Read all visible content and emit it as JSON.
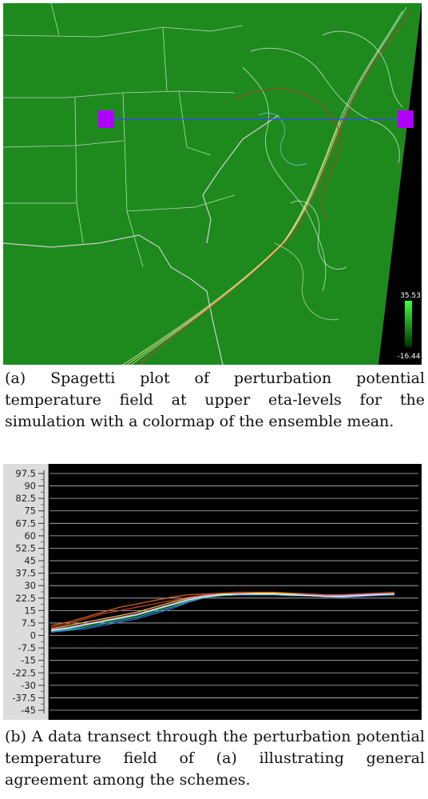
{
  "map": {
    "colorbar_max": "35.53",
    "colorbar_min": "-16.44",
    "background_color": "#1e8a1e",
    "marker_color": "#b000ff",
    "transect_line_color": "#4040ff"
  },
  "caption_a": "(a) Spagetti plot of perturbation potential temperature field at upper eta-levels for the simulation with a colormap of the ensemble mean.",
  "caption_b": "(b) A data transect through the perturbation potential temperature field of (a) illustrating general agreement among the schemes.",
  "chart_data": {
    "type": "line",
    "title": "",
    "xlabel": "",
    "ylabel": "",
    "ylim": [
      -47.5,
      100
    ],
    "y_ticks": [
      "97.5",
      "90",
      "82.5",
      "75",
      "67.5",
      "60",
      "52.5",
      "45",
      "37.5",
      "30",
      "22.5",
      "15",
      "7.5",
      "0",
      "-7.5",
      "-15",
      "-22.5",
      "-30",
      "-37.5",
      "-45"
    ],
    "grid": true,
    "x": [
      0,
      0.05,
      0.1,
      0.15,
      0.2,
      0.25,
      0.3,
      0.35,
      0.4,
      0.45,
      0.5,
      0.55,
      0.6,
      0.65,
      0.7,
      0.75,
      0.8,
      0.85,
      0.9,
      0.95,
      1.0
    ],
    "series": [
      {
        "color": "#e07020",
        "values": [
          6,
          8,
          11,
          14,
          17,
          19,
          21,
          23,
          24.5,
          25,
          25.5,
          26,
          26,
          26,
          25.5,
          25,
          24.5,
          24.5,
          25,
          25.5,
          26
        ]
      },
      {
        "color": "#d04030",
        "values": [
          5,
          7,
          10,
          13,
          15,
          17,
          19,
          21,
          23,
          24.5,
          25,
          25.5,
          25.5,
          25.5,
          25,
          25,
          24.5,
          24,
          24.5,
          25,
          25.5
        ]
      },
      {
        "color": "#ffd030",
        "values": [
          4,
          6,
          8,
          10,
          12,
          14,
          17,
          20,
          22.5,
          24,
          25,
          25,
          25.5,
          25.5,
          25,
          24.5,
          24,
          24,
          24.5,
          25,
          25
        ]
      },
      {
        "color": "#40b040",
        "values": [
          3,
          4,
          6,
          8,
          10,
          12,
          15,
          18,
          21,
          23.5,
          24.5,
          25,
          25,
          25,
          24.5,
          24.5,
          24,
          23.5,
          24,
          24.5,
          25
        ]
      },
      {
        "color": "#4070e0",
        "values": [
          2,
          3,
          4,
          6,
          8,
          10,
          13,
          16,
          20,
          23,
          24.5,
          24.5,
          24.5,
          24.5,
          24,
          24,
          23.5,
          23,
          23.5,
          24,
          24.5
        ]
      },
      {
        "color": "#20c0c0",
        "values": [
          2.5,
          3.5,
          5,
          7,
          9,
          11,
          14,
          17,
          20.5,
          23,
          24,
          24.5,
          24.5,
          24.5,
          24,
          24,
          23.5,
          23.5,
          24,
          24.5,
          24.5
        ]
      },
      {
        "color": "#b070e0",
        "values": [
          3.5,
          5,
          7,
          9,
          11,
          13,
          16,
          19,
          22,
          24,
          24.5,
          25,
          25,
          25,
          24.5,
          24.5,
          24,
          24,
          24.5,
          25,
          25
        ]
      },
      {
        "color": "#ffffff",
        "values": [
          3,
          4.5,
          6.5,
          8.5,
          10.5,
          12.5,
          15.5,
          18.5,
          21.5,
          23.5,
          24.5,
          25,
          25,
          25,
          24.5,
          24,
          23.5,
          23.5,
          24,
          24.5,
          25
        ]
      }
    ]
  }
}
